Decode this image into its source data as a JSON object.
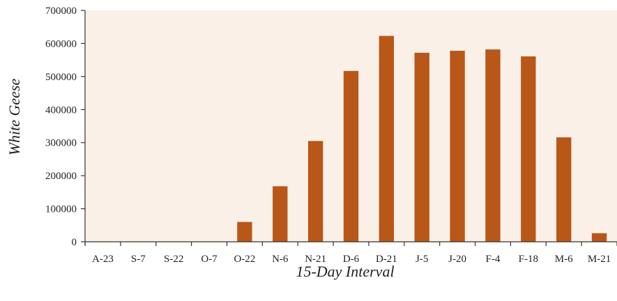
{
  "chart_data": {
    "type": "bar",
    "title": "",
    "xlabel": "15-Day Interval",
    "ylabel": "White Geese",
    "categories": [
      "A-23",
      "S-7",
      "S-22",
      "O-7",
      "O-22",
      "N-6",
      "N-21",
      "D-6",
      "D-21",
      "J-5",
      "J-20",
      "F-4",
      "F-18",
      "M-6",
      "M-21"
    ],
    "values": [
      0,
      0,
      0,
      0,
      60000,
      168000,
      305000,
      517000,
      623000,
      572000,
      578000,
      582000,
      561000,
      316000,
      26000
    ],
    "ylim": [
      0,
      700000
    ],
    "yticks": [
      0,
      100000,
      200000,
      300000,
      400000,
      500000,
      600000,
      700000
    ],
    "grid": false,
    "colors": {
      "bar": "#b85718",
      "plot_bg": "#faf0e8",
      "axis": "#333333"
    }
  }
}
